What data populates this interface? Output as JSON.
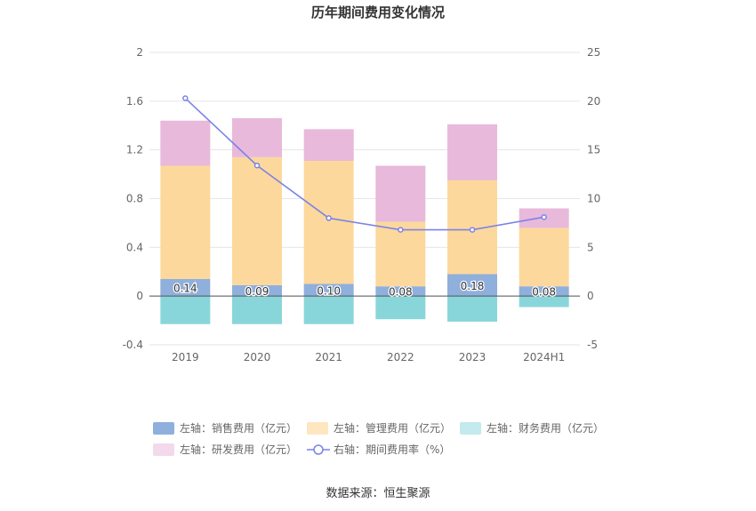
{
  "chart_data": {
    "type": "bar",
    "title": "历年期间费用变化情况",
    "categories": [
      "2019",
      "2020",
      "2021",
      "2022",
      "2023",
      "2024H1"
    ],
    "left_axis": {
      "min": -0.4,
      "max": 2,
      "ticks": [
        "2",
        "1.6",
        "1.2",
        "0.8",
        "0.4",
        "0",
        "-0.4"
      ],
      "tick_values": [
        2,
        1.6,
        1.2,
        0.8,
        0.4,
        0,
        -0.4
      ]
    },
    "right_axis": {
      "min": -5,
      "max": 25,
      "ticks": [
        "25",
        "20",
        "15",
        "10",
        "5",
        "0",
        "-5"
      ],
      "tick_values": [
        25,
        20,
        15,
        10,
        5,
        0,
        -5
      ]
    },
    "series": [
      {
        "name": "左轴：销售费用（亿元）",
        "type": "bar",
        "axis": "left",
        "color": "#8fafdc",
        "values": [
          0.14,
          0.09,
          0.1,
          0.08,
          0.18,
          0.08
        ],
        "labels": [
          "0.14",
          "0.09",
          "0.10",
          "0.08",
          "0.18",
          "0.08"
        ]
      },
      {
        "name": "左轴：管理费用（亿元）",
        "type": "bar",
        "axis": "left",
        "color": "#fdd89c",
        "values": [
          0.93,
          1.05,
          1.01,
          0.53,
          0.77,
          0.48
        ]
      },
      {
        "name": "左轴：财务费用（亿元）",
        "type": "bar",
        "axis": "left",
        "color": "#89d6da",
        "values": [
          -0.23,
          -0.23,
          -0.23,
          -0.19,
          -0.21,
          -0.09
        ]
      },
      {
        "name": "左轴：研发费用（亿元）",
        "type": "bar",
        "axis": "left",
        "color": "#e8b9da",
        "values": [
          0.37,
          0.32,
          0.26,
          0.46,
          0.46,
          0.16
        ]
      },
      {
        "name": "右轴：期间费用率（%）",
        "type": "line",
        "axis": "right",
        "color": "#7b83e8",
        "values": [
          20.3,
          13.4,
          8.0,
          6.8,
          6.8,
          8.1
        ]
      }
    ],
    "legend_position": "bottom",
    "grid": true
  },
  "source": "数据来源：恒生聚源"
}
